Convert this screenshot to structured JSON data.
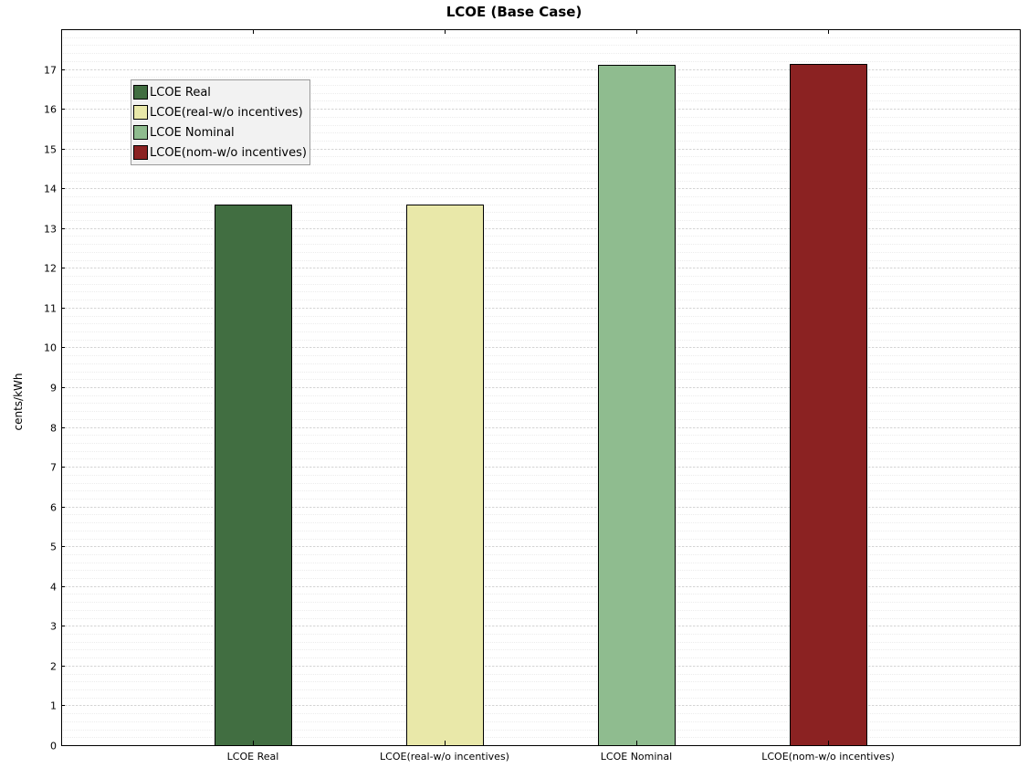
{
  "chart_data": {
    "type": "bar",
    "title": "LCOE (Base Case)",
    "xlabel": "",
    "ylabel": "cents/kWh",
    "ylim": [
      0,
      18
    ],
    "yticks": [
      "0",
      "1",
      "2",
      "3",
      "4",
      "5",
      "6",
      "7",
      "8",
      "9",
      "10",
      "11",
      "12",
      "13",
      "14",
      "15",
      "16",
      "17"
    ],
    "categories": [
      "LCOE Real",
      "LCOE(real-w/o incentives)",
      "LCOE Nominal",
      "LCOE(nom-w/o incentives)"
    ],
    "values": [
      13.6,
      13.6,
      17.1,
      17.13
    ],
    "colors": [
      "#416e41",
      "#e9e8a9",
      "#8fbc8f",
      "#8b2222"
    ],
    "grid": true,
    "legend": {
      "placement": "top-left",
      "entries": [
        "LCOE Real",
        "LCOE(real-w/o incentives)",
        "LCOE Nominal",
        "LCOE(nom-w/o incentives)"
      ]
    }
  }
}
